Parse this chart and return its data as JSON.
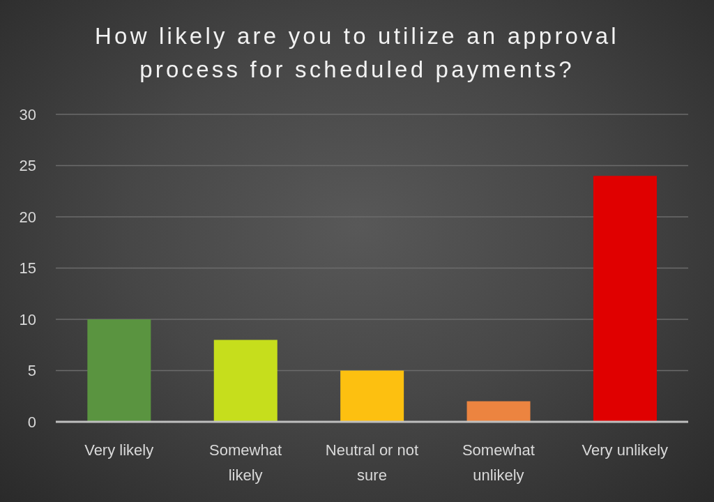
{
  "chart_data": {
    "type": "bar",
    "title": "How likely are you to utilize an approval process for scheduled payments?",
    "categories": [
      "Very likely",
      "Somewhat likely",
      "Neutral or not sure",
      "Somewhat unlikely",
      "Very unlikely"
    ],
    "values": [
      10,
      8,
      5,
      2,
      24
    ],
    "colors": [
      "#5a9440",
      "#c6de1c",
      "#fdc010",
      "#ec8440",
      "#e00000"
    ],
    "ylim": [
      0,
      30
    ],
    "yticks": [
      0,
      5,
      10,
      15,
      20,
      25,
      30
    ],
    "grid": "y"
  }
}
